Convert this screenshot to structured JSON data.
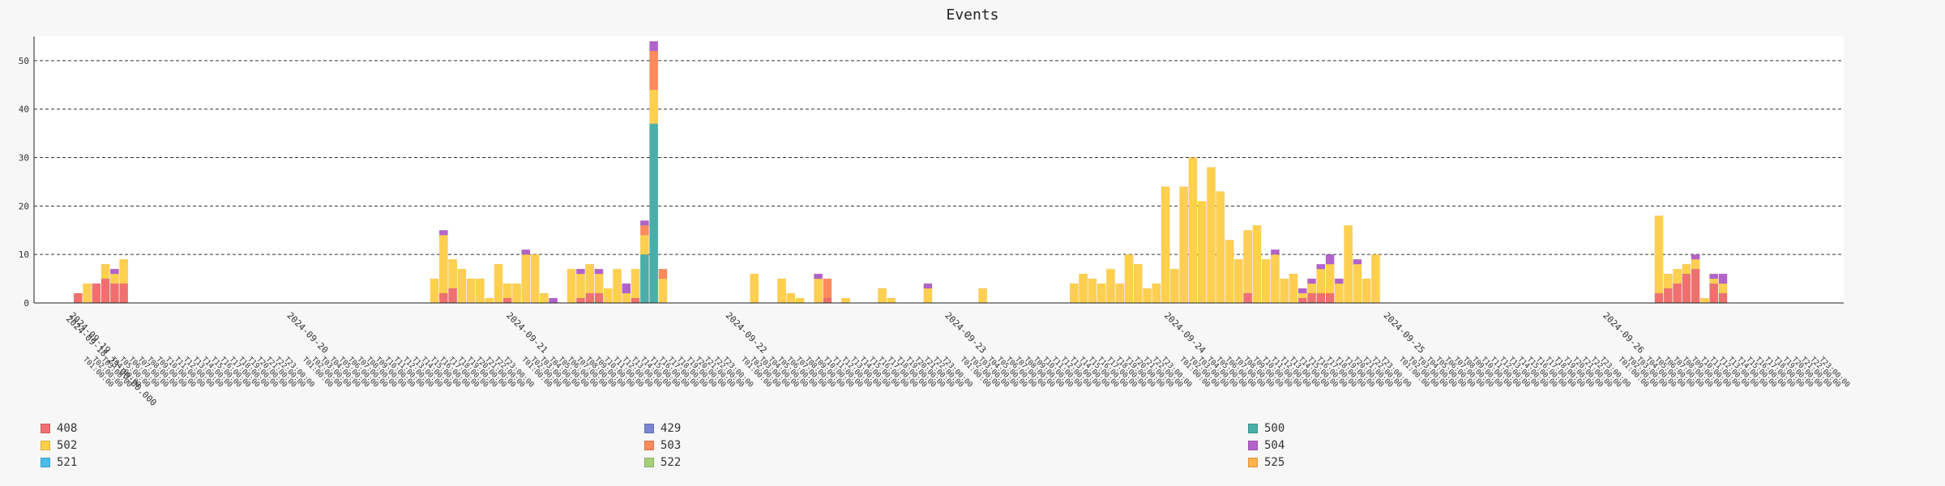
{
  "chart_data": {
    "type": "bar",
    "stacked": true,
    "title": "Events",
    "grid": "horizontal dashed",
    "legend_position": "bottom",
    "ylim": [
      0,
      55
    ],
    "yticks": [
      0,
      10,
      20,
      30,
      40,
      50
    ],
    "x_start": "2024-09-19T00:00:00",
    "x_end": "2024-09-27T00:00:00",
    "date_ticks": [
      {
        "label": "2024-09-20",
        "x": "2024-09-20T00:00:00"
      },
      {
        "label": "2024-09-21",
        "x": "2024-09-21T00:00:00"
      },
      {
        "label": "2024-09-22",
        "x": "2024-09-22T00:00:00"
      },
      {
        "label": "2024-09-23",
        "x": "2024-09-23T00:00:00"
      },
      {
        "label": "2024-09-24",
        "x": "2024-09-24T00:00:00"
      },
      {
        "label": "2024-09-25",
        "x": "2024-09-25T00:00:00"
      },
      {
        "label": "2024-09-26",
        "x": "2024-09-26T00:00:00"
      }
    ],
    "first_tick_labels": [
      "2024-09-19",
      "2024-09-18 23:00:00.000"
    ],
    "series": [
      {
        "name": "408",
        "color": "#f07070"
      },
      {
        "name": "429",
        "color": "#7b86d2"
      },
      {
        "name": "500",
        "color": "#4aaea8"
      },
      {
        "name": "502",
        "color": "#ffd04f"
      },
      {
        "name": "503",
        "color": "#ff8a5c"
      },
      {
        "name": "504",
        "color": "#b263c9"
      },
      {
        "name": "521",
        "color": "#4cbde8"
      },
      {
        "name": "522",
        "color": "#a6d07a"
      },
      {
        "name": "525",
        "color": "#ffb14d"
      }
    ],
    "bars": [
      {
        "x": "2024-09-19T01:00:00",
        "408": 2
      },
      {
        "x": "2024-09-19T02:00:00",
        "502": 4
      },
      {
        "x": "2024-09-19T03:00:00",
        "408": 4
      },
      {
        "x": "2024-09-19T04:00:00",
        "408": 5,
        "502": 3
      },
      {
        "x": "2024-09-19T05:00:00",
        "408": 4,
        "502": 2,
        "504": 1
      },
      {
        "x": "2024-09-19T06:00:00",
        "408": 4,
        "502": 5
      },
      {
        "x": "2024-09-20T16:00:00",
        "502": 5
      },
      {
        "x": "2024-09-20T17:00:00",
        "408": 2,
        "502": 12,
        "504": 1
      },
      {
        "x": "2024-09-20T18:00:00",
        "408": 3,
        "502": 6
      },
      {
        "x": "2024-09-20T19:00:00",
        "502": 7
      },
      {
        "x": "2024-09-20T20:00:00",
        "502": 5
      },
      {
        "x": "2024-09-20T21:00:00",
        "502": 5
      },
      {
        "x": "2024-09-20T22:00:00",
        "502": 1
      },
      {
        "x": "2024-09-20T23:00:00",
        "502": 8
      },
      {
        "x": "2024-09-21T00:00:00",
        "408": 1,
        "502": 3
      },
      {
        "x": "2024-09-21T01:00:00",
        "502": 4
      },
      {
        "x": "2024-09-21T02:00:00",
        "502": 10,
        "504": 1
      },
      {
        "x": "2024-09-21T03:00:00",
        "502": 10
      },
      {
        "x": "2024-09-21T04:00:00",
        "502": 2
      },
      {
        "x": "2024-09-21T05:00:00",
        "504": 1
      },
      {
        "x": "2024-09-21T07:00:00",
        "502": 7
      },
      {
        "x": "2024-09-21T08:00:00",
        "408": 1,
        "502": 5,
        "504": 1
      },
      {
        "x": "2024-09-21T09:00:00",
        "408": 2,
        "502": 6
      },
      {
        "x": "2024-09-21T10:00:00",
        "408": 2,
        "502": 4,
        "504": 1
      },
      {
        "x": "2024-09-21T11:00:00",
        "502": 3
      },
      {
        "x": "2024-09-21T12:00:00",
        "502": 7
      },
      {
        "x": "2024-09-21T13:00:00",
        "502": 2,
        "504": 2
      },
      {
        "x": "2024-09-21T14:00:00",
        "408": 1,
        "502": 6
      },
      {
        "x": "2024-09-21T15:00:00",
        "500": 10,
        "502": 4,
        "503": 2,
        "504": 1
      },
      {
        "x": "2024-09-21T16:00:00",
        "500": 37,
        "502": 7,
        "503": 8,
        "504": 2
      },
      {
        "x": "2024-09-21T17:00:00",
        "502": 5,
        "503": 2
      },
      {
        "x": "2024-09-22T03:00:00",
        "502": 6
      },
      {
        "x": "2024-09-22T06:00:00",
        "502": 5
      },
      {
        "x": "2024-09-22T07:00:00",
        "502": 2
      },
      {
        "x": "2024-09-22T08:00:00",
        "502": 1
      },
      {
        "x": "2024-09-22T10:00:00",
        "502": 5,
        "504": 1
      },
      {
        "x": "2024-09-22T11:00:00",
        "408": 1,
        "503": 4
      },
      {
        "x": "2024-09-22T13:00:00",
        "502": 1
      },
      {
        "x": "2024-09-22T17:00:00",
        "502": 3
      },
      {
        "x": "2024-09-22T18:00:00",
        "502": 1
      },
      {
        "x": "2024-09-22T22:00:00",
        "502": 3,
        "504": 1
      },
      {
        "x": "2024-09-23T04:00:00",
        "502": 3
      },
      {
        "x": "2024-09-23T14:00:00",
        "502": 4
      },
      {
        "x": "2024-09-23T15:00:00",
        "502": 6
      },
      {
        "x": "2024-09-23T16:00:00",
        "502": 5
      },
      {
        "x": "2024-09-23T17:00:00",
        "502": 4
      },
      {
        "x": "2024-09-23T18:00:00",
        "502": 7
      },
      {
        "x": "2024-09-23T19:00:00",
        "502": 4
      },
      {
        "x": "2024-09-23T20:00:00",
        "502": 10
      },
      {
        "x": "2024-09-23T21:00:00",
        "502": 8
      },
      {
        "x": "2024-09-23T22:00:00",
        "502": 3
      },
      {
        "x": "2024-09-23T23:00:00",
        "502": 4
      },
      {
        "x": "2024-09-24T00:00:00",
        "502": 24
      },
      {
        "x": "2024-09-24T01:00:00",
        "502": 7
      },
      {
        "x": "2024-09-24T02:00:00",
        "502": 24
      },
      {
        "x": "2024-09-24T03:00:00",
        "502": 30
      },
      {
        "x": "2024-09-24T04:00:00",
        "502": 21
      },
      {
        "x": "2024-09-24T05:00:00",
        "502": 28
      },
      {
        "x": "2024-09-24T06:00:00",
        "502": 23
      },
      {
        "x": "2024-09-24T07:00:00",
        "502": 13
      },
      {
        "x": "2024-09-24T08:00:00",
        "502": 9
      },
      {
        "x": "2024-09-24T09:00:00",
        "408": 2,
        "502": 13
      },
      {
        "x": "2024-09-24T10:00:00",
        "502": 16
      },
      {
        "x": "2024-09-24T11:00:00",
        "502": 9
      },
      {
        "x": "2024-09-24T12:00:00",
        "502": 10,
        "504": 1
      },
      {
        "x": "2024-09-24T13:00:00",
        "502": 5
      },
      {
        "x": "2024-09-24T14:00:00",
        "502": 6
      },
      {
        "x": "2024-09-24T15:00:00",
        "408": 1,
        "502": 1,
        "504": 1
      },
      {
        "x": "2024-09-24T16:00:00",
        "408": 2,
        "502": 2,
        "504": 1
      },
      {
        "x": "2024-09-24T17:00:00",
        "408": 2,
        "502": 5,
        "504": 1
      },
      {
        "x": "2024-09-24T18:00:00",
        "408": 2,
        "502": 6,
        "504": 2
      },
      {
        "x": "2024-09-24T19:00:00",
        "502": 4,
        "504": 1
      },
      {
        "x": "2024-09-24T20:00:00",
        "502": 16
      },
      {
        "x": "2024-09-24T21:00:00",
        "502": 8,
        "504": 1
      },
      {
        "x": "2024-09-24T22:00:00",
        "502": 5
      },
      {
        "x": "2024-09-24T23:00:00",
        "502": 10
      },
      {
        "x": "2024-09-26T06:00:00",
        "408": 2,
        "502": 16
      },
      {
        "x": "2024-09-26T07:00:00",
        "408": 3,
        "502": 3
      },
      {
        "x": "2024-09-26T08:00:00",
        "408": 4,
        "502": 3
      },
      {
        "x": "2024-09-26T09:00:00",
        "408": 6,
        "502": 2
      },
      {
        "x": "2024-09-26T10:00:00",
        "408": 7,
        "502": 2,
        "504": 1
      },
      {
        "x": "2024-09-26T11:00:00",
        "502": 1
      },
      {
        "x": "2024-09-26T12:00:00",
        "408": 4,
        "502": 1,
        "504": 1
      },
      {
        "x": "2024-09-26T13:00:00",
        "408": 2,
        "502": 2,
        "504": 2
      }
    ]
  },
  "legend_order": [
    "408",
    "429",
    "500",
    "502",
    "503",
    "504",
    "521",
    "522",
    "525"
  ]
}
